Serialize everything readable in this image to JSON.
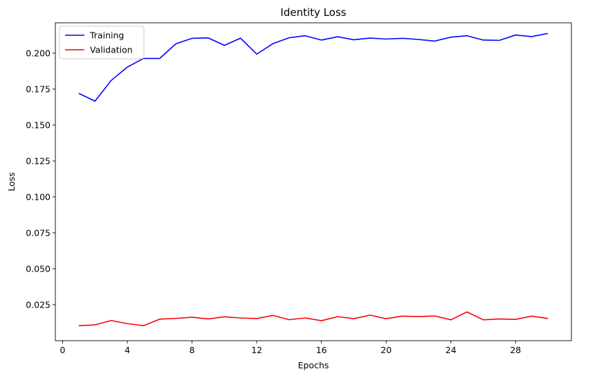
{
  "chart_data": {
    "type": "line",
    "title": "Identity Loss",
    "xlabel": "Epochs",
    "ylabel": "Loss",
    "xlim": [
      -0.45,
      31.45
    ],
    "ylim": [
      0.0,
      0.2211
    ],
    "xticks": [
      0,
      4,
      8,
      12,
      16,
      20,
      24,
      28
    ],
    "yticks": [
      0.025,
      0.05,
      0.075,
      0.1,
      0.125,
      0.15,
      0.175,
      0.2
    ],
    "ytick_labels": [
      "0.025",
      "0.050",
      "0.075",
      "0.100",
      "0.125",
      "0.150",
      "0.175",
      "0.200"
    ],
    "grid": false,
    "legend_position": "top-left",
    "x": [
      1,
      2,
      3,
      4,
      5,
      6,
      7,
      8,
      9,
      10,
      11,
      12,
      13,
      14,
      15,
      16,
      17,
      18,
      19,
      20,
      21,
      22,
      23,
      24,
      25,
      26,
      27,
      28,
      29,
      30
    ],
    "series": [
      {
        "name": "Training",
        "color": "#0000ff",
        "values": [
          0.172,
          0.1666,
          0.181,
          0.1903,
          0.1963,
          0.1963,
          0.2065,
          0.2103,
          0.2106,
          0.2054,
          0.2104,
          0.1993,
          0.2066,
          0.2107,
          0.2121,
          0.2091,
          0.2114,
          0.2093,
          0.2105,
          0.2098,
          0.2103,
          0.2095,
          0.2084,
          0.2111,
          0.2121,
          0.2091,
          0.2089,
          0.2126,
          0.2115,
          0.2137
        ]
      },
      {
        "name": "Validation",
        "color": "#ff0000",
        "values": [
          0.0104,
          0.011,
          0.014,
          0.0119,
          0.0104,
          0.015,
          0.0155,
          0.0163,
          0.0151,
          0.0166,
          0.0158,
          0.0154,
          0.0176,
          0.0146,
          0.0158,
          0.0139,
          0.0167,
          0.0153,
          0.0178,
          0.0153,
          0.0171,
          0.0168,
          0.0172,
          0.0145,
          0.02,
          0.0145,
          0.0151,
          0.0148,
          0.0171,
          0.0154
        ]
      }
    ]
  }
}
